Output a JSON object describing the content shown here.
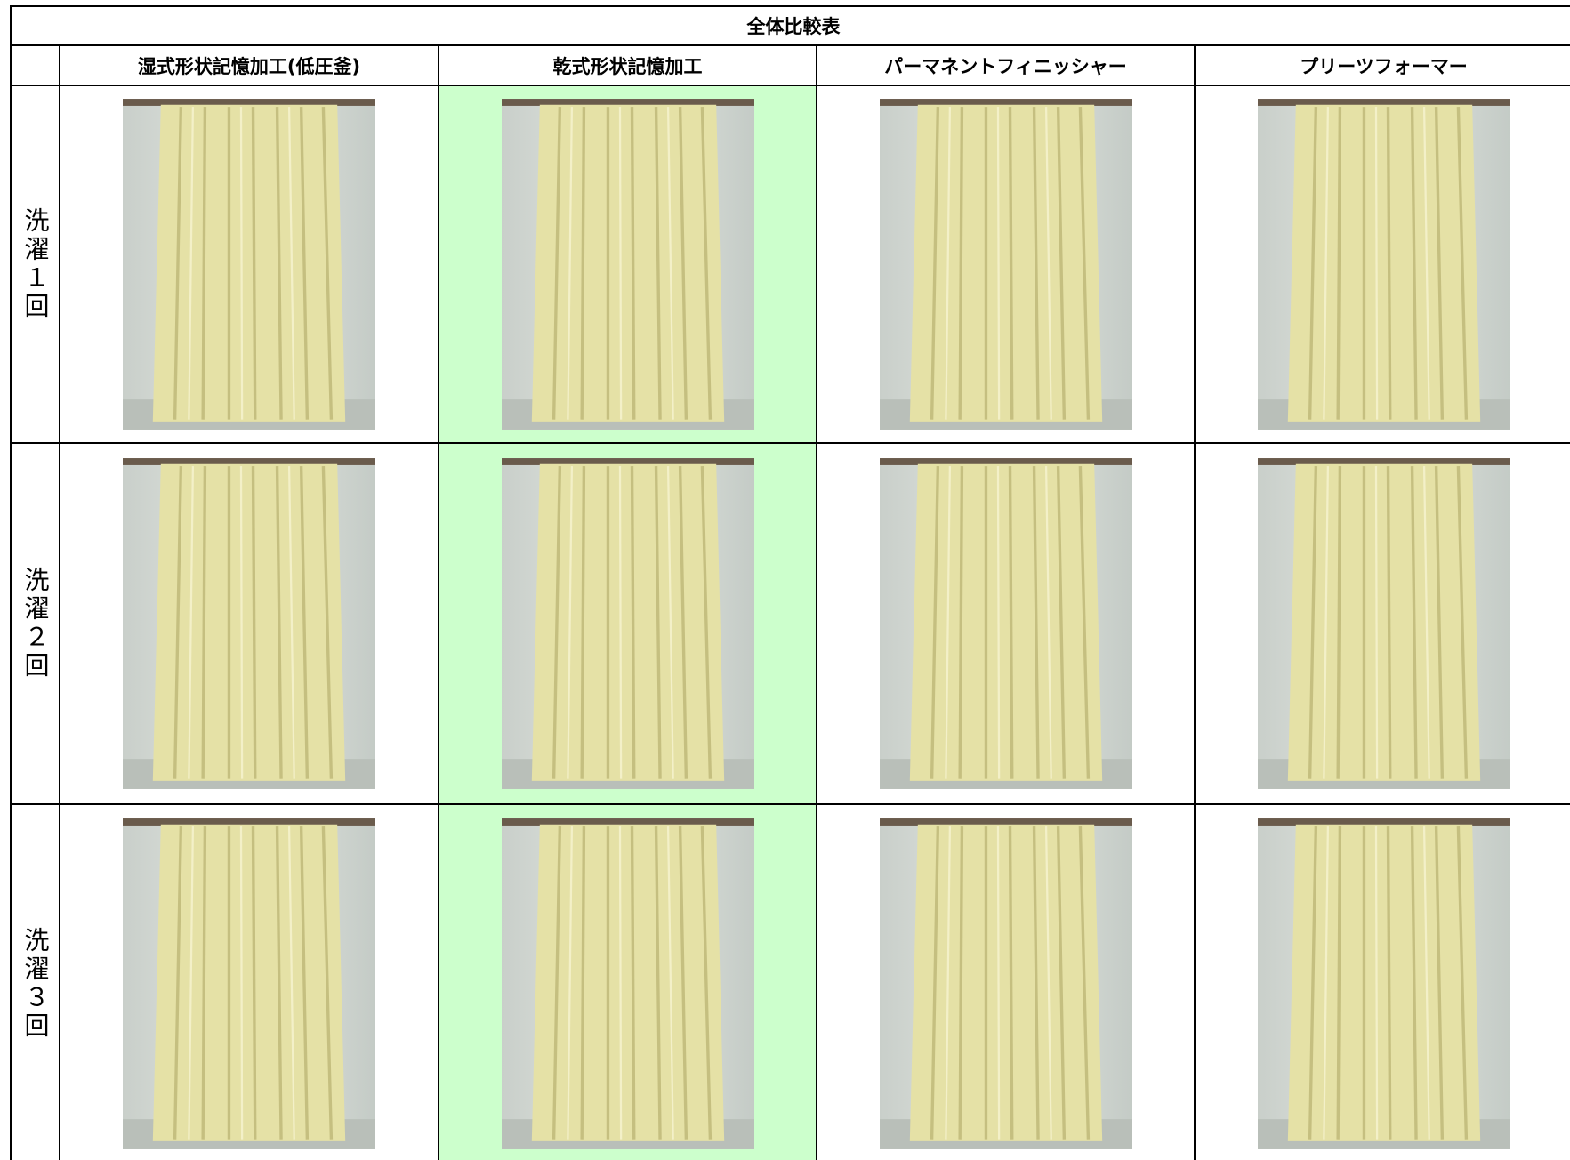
{
  "table": {
    "title": "全体比較表",
    "columns": [
      "湿式形状記憶加工(低圧釜)",
      "乾式形状記憶加工",
      "パーマネントフィニッシャー",
      "プリーツフォーマー"
    ],
    "rows": [
      "洗濯１回",
      "洗濯２回",
      "洗濯３回"
    ]
  }
}
